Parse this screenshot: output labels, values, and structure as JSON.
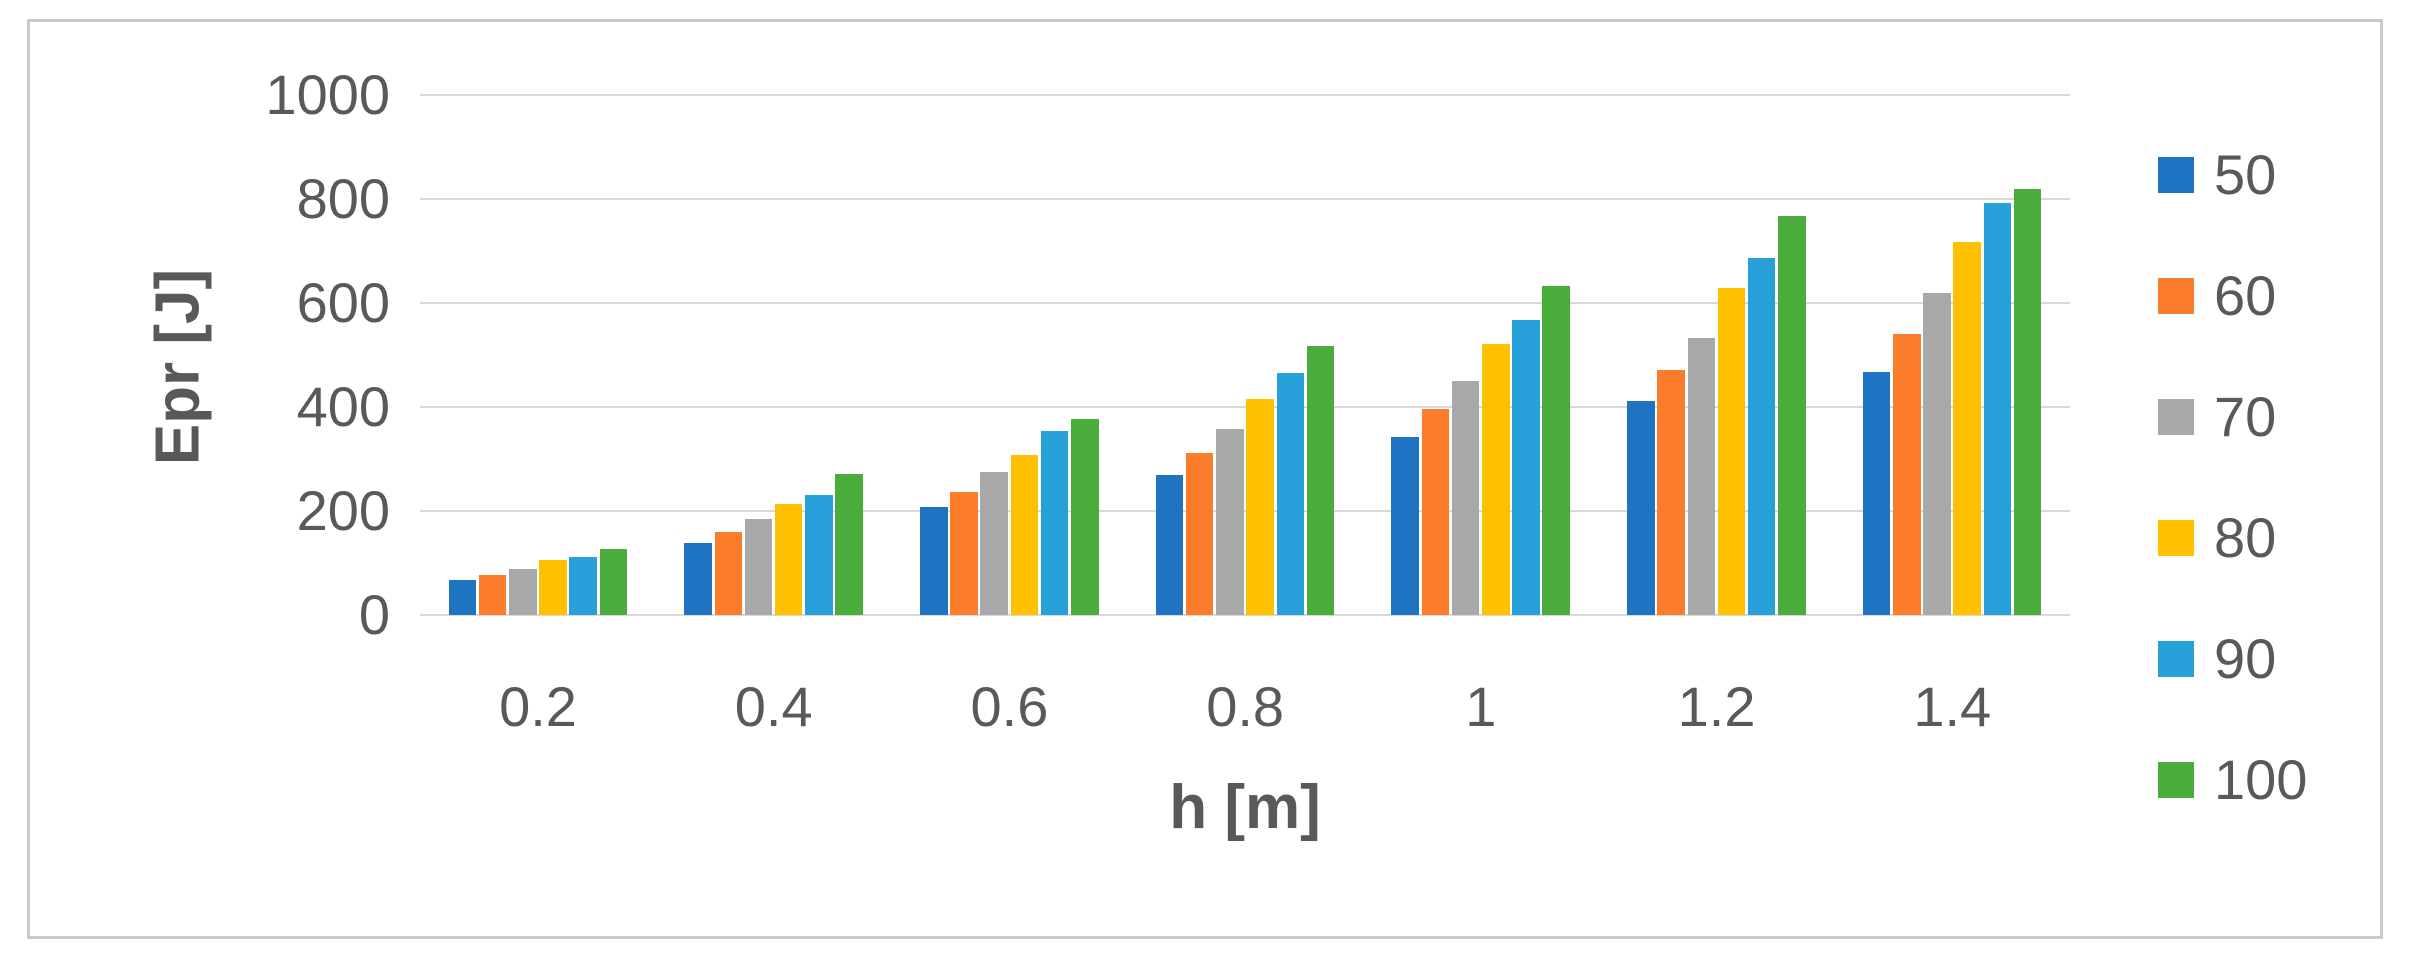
{
  "chart_data": {
    "type": "bar",
    "title": "",
    "xlabel": "h [m]",
    "ylabel": "Epr [J]",
    "categories": [
      "0.2",
      "0.4",
      "0.6",
      "0.8",
      "1",
      "1.2",
      "1.4"
    ],
    "series": [
      {
        "name": "50",
        "color": "#1e73c2",
        "values": [
          67,
          138,
          207,
          269,
          342,
          412,
          467
        ]
      },
      {
        "name": "60",
        "color": "#fb7d2b",
        "values": [
          77,
          159,
          237,
          312,
          396,
          472,
          541
        ]
      },
      {
        "name": "70",
        "color": "#a8a8a8",
        "values": [
          88,
          184,
          275,
          357,
          450,
          533,
          620
        ]
      },
      {
        "name": "80",
        "color": "#ffc000",
        "values": [
          105,
          214,
          308,
          415,
          521,
          629,
          718
        ]
      },
      {
        "name": "90",
        "color": "#27a0da",
        "values": [
          111,
          231,
          353,
          465,
          567,
          687,
          792
        ]
      },
      {
        "name": "100",
        "color": "#4aad3b",
        "values": [
          126,
          271,
          376,
          517,
          633,
          767,
          819
        ]
      }
    ],
    "ylim": [
      0,
      1000
    ],
    "yticks": [
      0,
      200,
      400,
      600,
      800,
      1000
    ],
    "grid": true,
    "legend_position": "right",
    "text_color": "#595959",
    "gridline_color": "#d9d9d9",
    "frame_border_color": "#c9c9c9"
  }
}
